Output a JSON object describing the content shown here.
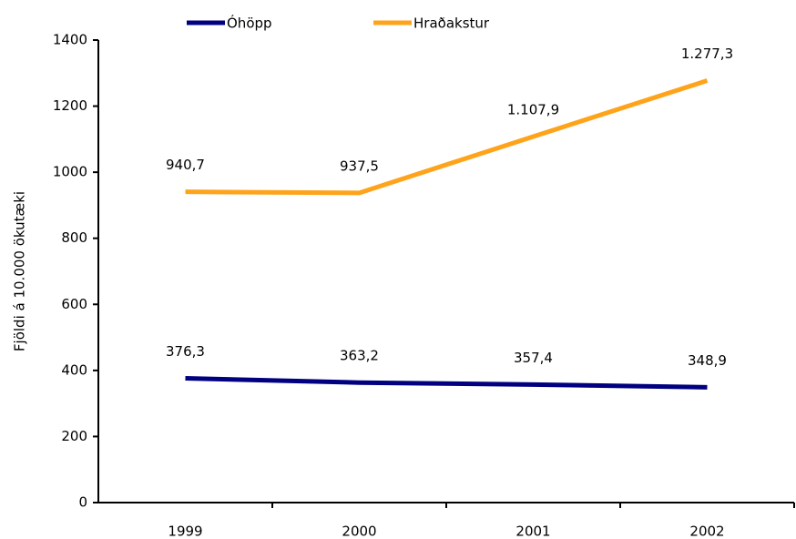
{
  "chart_data": {
    "type": "line",
    "y_label": "Fjöldi á 10.000 ökutæki",
    "categories": [
      "1999",
      "2000",
      "2001",
      "2002"
    ],
    "series": [
      {
        "name": "Óhöpp",
        "color": "#000080",
        "values": [
          376.3,
          363.2,
          357.4,
          348.9
        ],
        "value_labels": [
          "376,3",
          "363,2",
          "357,4",
          "348,9"
        ]
      },
      {
        "name": "Hraðakstur",
        "color": "#ffa31a",
        "values": [
          940.7,
          937.5,
          1107.9,
          1277.3
        ],
        "value_labels": [
          "940,7",
          "937,5",
          "1.107,9",
          "1.277,3"
        ]
      }
    ],
    "ylim": [
      0,
      1400
    ],
    "yticks": [
      0,
      200,
      400,
      600,
      800,
      1000,
      1200,
      1400
    ],
    "grid": false,
    "legend": "top"
  }
}
